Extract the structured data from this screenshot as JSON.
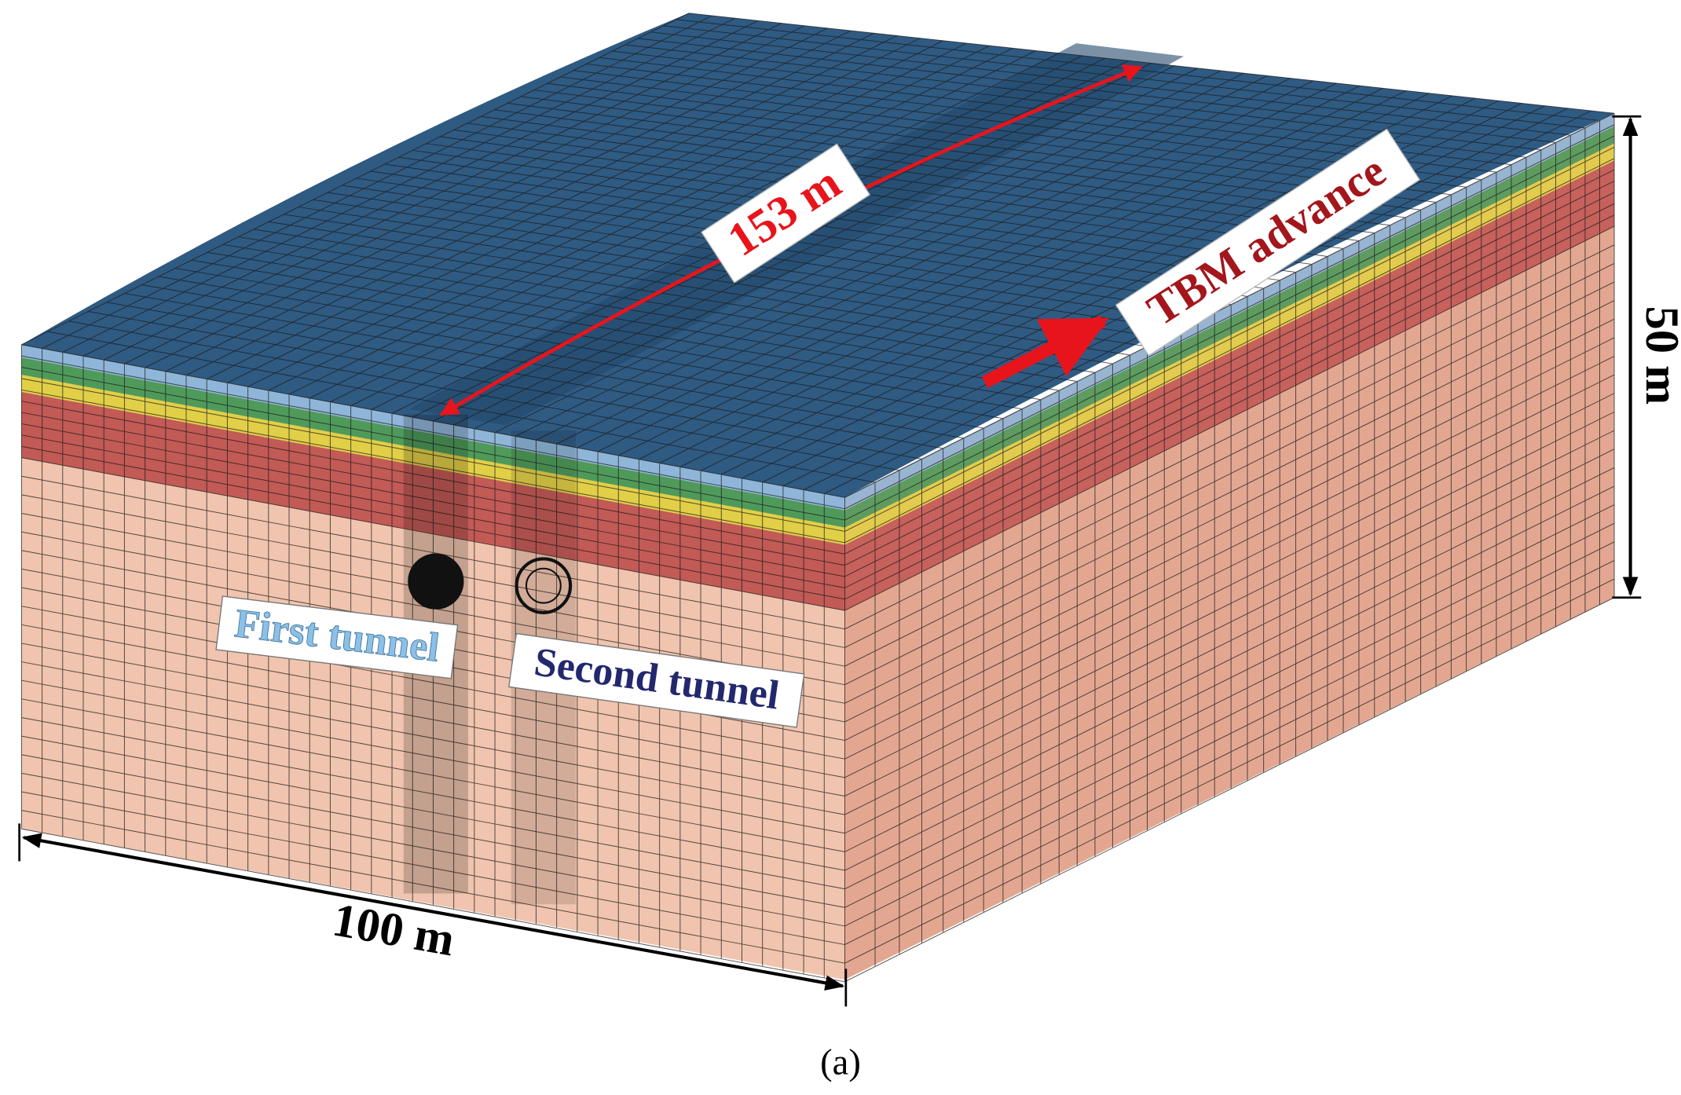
{
  "labels": {
    "length": "153 m",
    "advance": "TBM advance",
    "height": "50 m",
    "first_tunnel": "First tunnel",
    "second_tunnel": "Second tunnel",
    "width": "100 m",
    "caption": "(a)"
  }
}
